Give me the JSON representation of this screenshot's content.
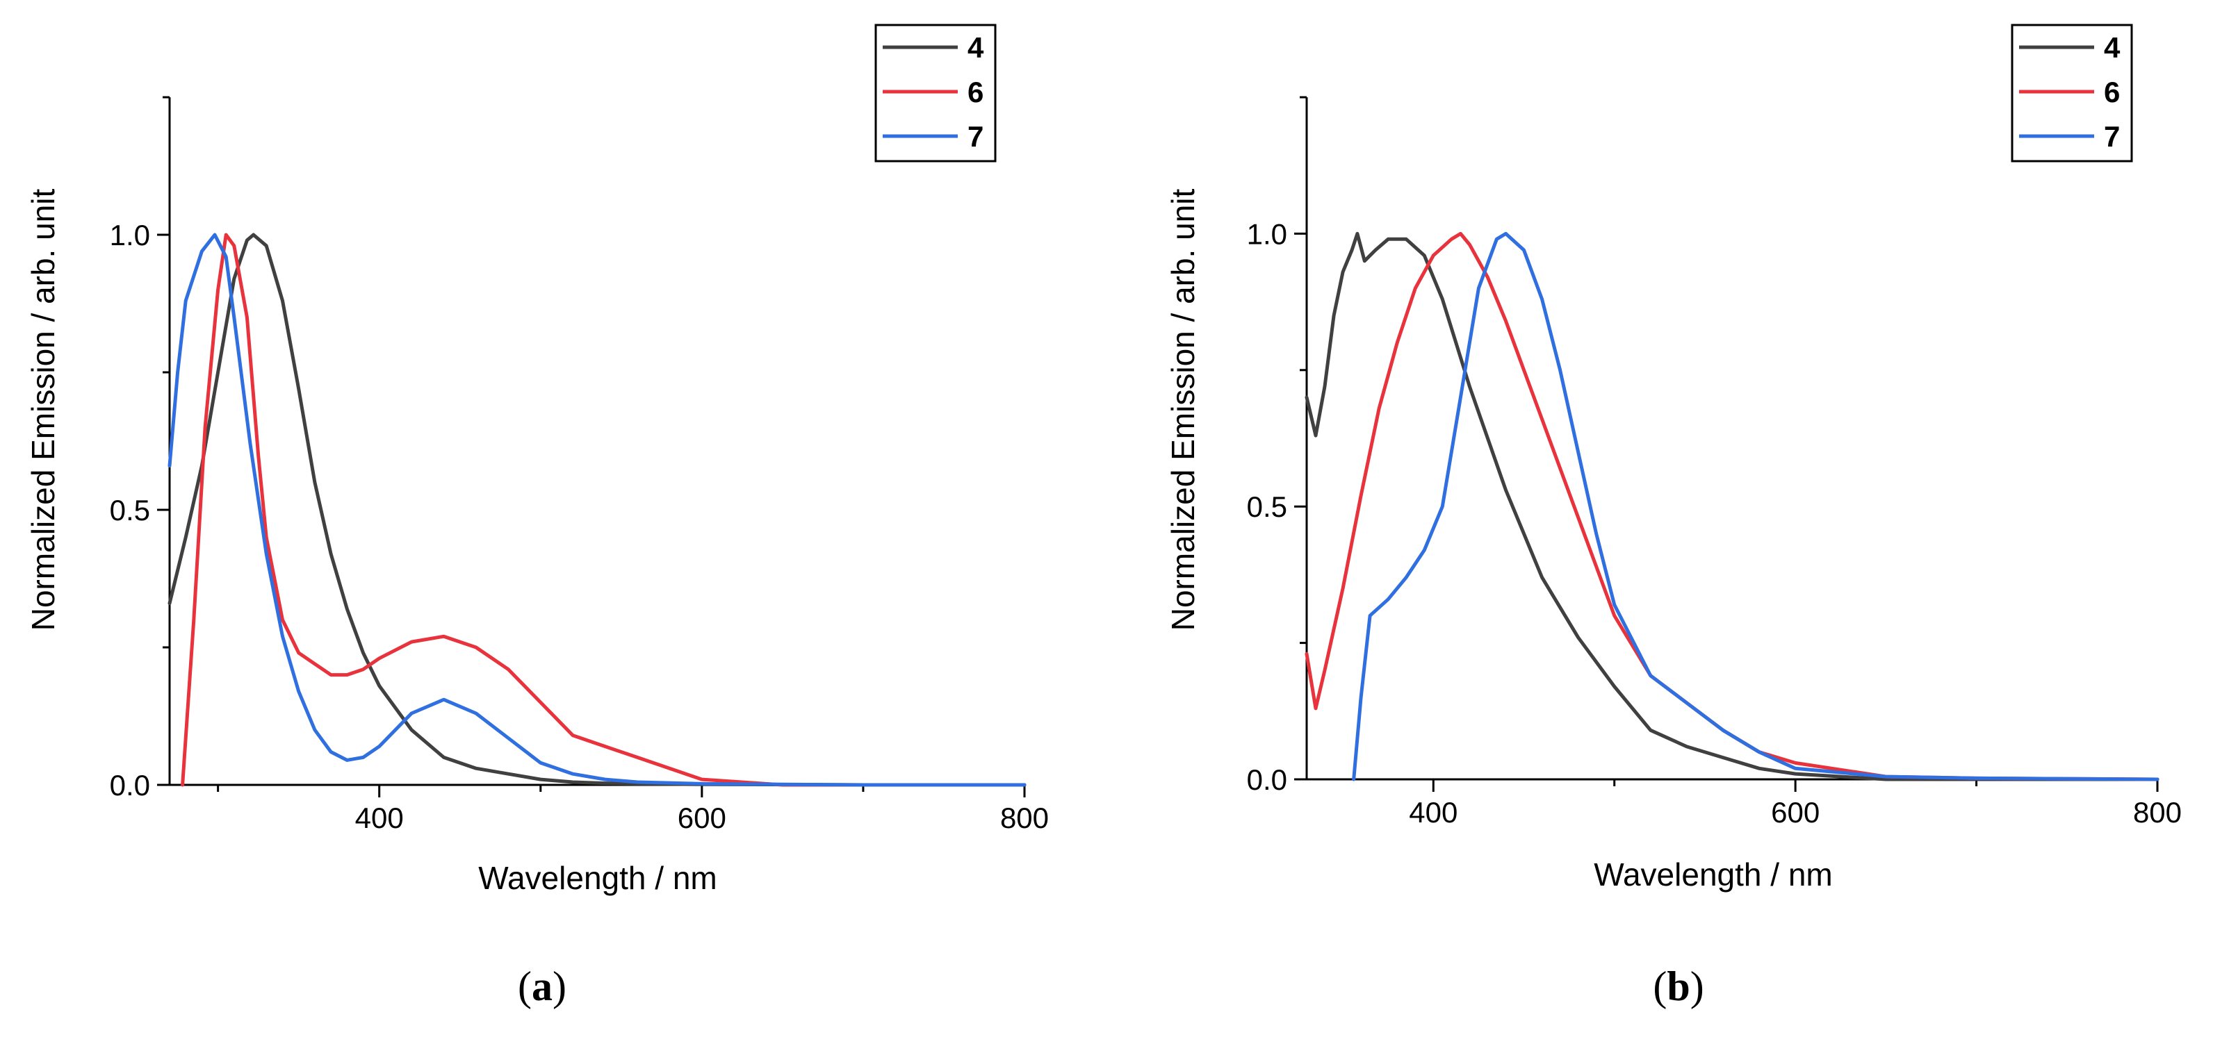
{
  "figure_labels": {
    "a_open": "(",
    "a_letter": "a",
    "a_close": ")",
    "b_open": "(",
    "b_letter": "b",
    "b_close": ")"
  },
  "chart_data": [
    {
      "type": "line",
      "panel": "a",
      "xlabel": "Wavelength / nm",
      "ylabel": "Normalized Emission / arb. unit",
      "xlim": [
        270,
        800
      ],
      "ylim": [
        0,
        1.25
      ],
      "xticks": [
        400,
        600,
        800
      ],
      "xtick_labels": [
        "400",
        "600",
        "800"
      ],
      "yticks": [
        0,
        0.5,
        1.0
      ],
      "ytick_labels": [
        "0.0",
        "0.5",
        "1.0"
      ],
      "grid": false,
      "legend_position": "top-right",
      "series": [
        {
          "name": "4",
          "color": "#404040",
          "x": [
            270,
            280,
            290,
            300,
            310,
            318,
            322,
            330,
            340,
            350,
            360,
            370,
            380,
            390,
            400,
            420,
            440,
            460,
            480,
            500,
            520,
            540,
            560,
            600,
            700,
            800
          ],
          "y": [
            0.33,
            0.45,
            0.58,
            0.75,
            0.92,
            0.99,
            1.0,
            0.98,
            0.88,
            0.72,
            0.55,
            0.42,
            0.32,
            0.24,
            0.18,
            0.1,
            0.05,
            0.03,
            0.02,
            0.01,
            0.005,
            0.003,
            0.002,
            0.001,
            0.0,
            0.0
          ]
        },
        {
          "name": "6",
          "color": "#e8323c",
          "x": [
            278,
            285,
            292,
            300,
            305,
            310,
            318,
            325,
            330,
            340,
            350,
            360,
            370,
            380,
            390,
            400,
            420,
            440,
            460,
            480,
            500,
            520,
            540,
            560,
            600,
            650,
            700,
            800
          ],
          "y": [
            0.0,
            0.3,
            0.65,
            0.9,
            1.0,
            0.98,
            0.85,
            0.6,
            0.45,
            0.3,
            0.24,
            0.22,
            0.2,
            0.2,
            0.21,
            0.23,
            0.26,
            0.27,
            0.25,
            0.21,
            0.15,
            0.09,
            0.07,
            0.05,
            0.01,
            0.0,
            0.0,
            0.0
          ]
        },
        {
          "name": "7",
          "color": "#2f6fe0",
          "x": [
            270,
            275,
            280,
            290,
            298,
            305,
            310,
            320,
            330,
            340,
            350,
            360,
            370,
            380,
            390,
            400,
            410,
            420,
            440,
            460,
            480,
            500,
            520,
            540,
            560,
            600,
            700,
            800
          ],
          "y": [
            0.58,
            0.75,
            0.88,
            0.97,
            1.0,
            0.96,
            0.85,
            0.62,
            0.42,
            0.27,
            0.17,
            0.1,
            0.06,
            0.045,
            0.05,
            0.07,
            0.1,
            0.13,
            0.155,
            0.13,
            0.085,
            0.04,
            0.02,
            0.01,
            0.005,
            0.002,
            0.0,
            0.0
          ]
        }
      ]
    },
    {
      "type": "line",
      "panel": "b",
      "xlabel": "Wavelength / nm",
      "ylabel": "Normalized Emission / arb. unit",
      "xlim": [
        330,
        800
      ],
      "ylim": [
        0,
        1.25
      ],
      "xticks": [
        400,
        600,
        800
      ],
      "xtick_labels": [
        "400",
        "600",
        "800"
      ],
      "yticks": [
        0,
        0.5,
        1.0
      ],
      "ytick_labels": [
        "0.0",
        "0.5",
        "1.0"
      ],
      "grid": false,
      "legend_position": "top-right",
      "series": [
        {
          "name": "4",
          "color": "#404040",
          "x": [
            330,
            335,
            340,
            345,
            350,
            355,
            358,
            362,
            368,
            375,
            385,
            395,
            405,
            420,
            440,
            460,
            480,
            500,
            520,
            540,
            560,
            580,
            600,
            650,
            700,
            800
          ],
          "y": [
            0.7,
            0.63,
            0.72,
            0.85,
            0.93,
            0.97,
            1.0,
            0.95,
            0.97,
            0.99,
            0.99,
            0.96,
            0.88,
            0.72,
            0.53,
            0.37,
            0.26,
            0.17,
            0.09,
            0.06,
            0.04,
            0.02,
            0.01,
            0.0,
            0.0,
            0.0
          ]
        },
        {
          "name": "6",
          "color": "#e8323c",
          "x": [
            330,
            335,
            340,
            350,
            360,
            370,
            380,
            390,
            400,
            410,
            415,
            420,
            430,
            440,
            460,
            480,
            500,
            520,
            540,
            560,
            580,
            600,
            650,
            700,
            800
          ],
          "y": [
            0.23,
            0.13,
            0.2,
            0.35,
            0.52,
            0.68,
            0.8,
            0.9,
            0.96,
            0.99,
            1.0,
            0.98,
            0.92,
            0.84,
            0.66,
            0.48,
            0.3,
            0.19,
            0.14,
            0.09,
            0.05,
            0.03,
            0.005,
            0.002,
            0.0
          ]
        },
        {
          "name": "7",
          "color": "#2f6fe0",
          "x": [
            356,
            360,
            365,
            375,
            385,
            395,
            405,
            415,
            425,
            435,
            440,
            450,
            460,
            470,
            480,
            490,
            500,
            520,
            540,
            560,
            580,
            600,
            650,
            700,
            800
          ],
          "y": [
            0.0,
            0.15,
            0.3,
            0.33,
            0.37,
            0.42,
            0.5,
            0.7,
            0.9,
            0.99,
            1.0,
            0.97,
            0.88,
            0.75,
            0.6,
            0.45,
            0.32,
            0.19,
            0.14,
            0.09,
            0.05,
            0.02,
            0.005,
            0.002,
            0.0
          ]
        }
      ]
    }
  ]
}
